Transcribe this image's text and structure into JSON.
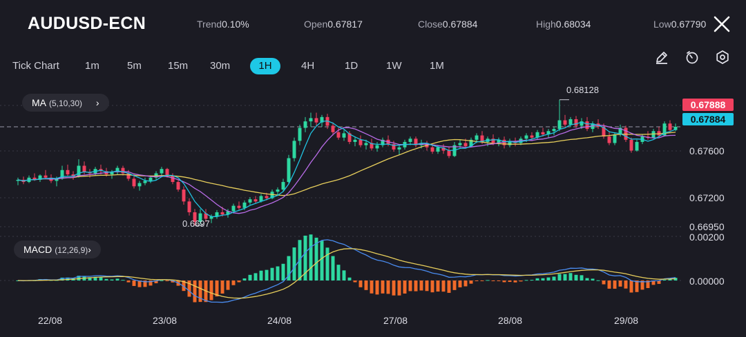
{
  "header": {
    "symbol": "AUDUSD-ECN",
    "trend_label": "Trend",
    "trend_value": "0.10%",
    "open_label": "Open",
    "open_value": "0.67817",
    "close_label": "Close",
    "close_value": "0.67884",
    "high_label": "High",
    "high_value": "0.68034",
    "low_label": "Low",
    "low_value": "0.67790",
    "close_icon": "close-icon"
  },
  "timeframes": [
    "Tick Chart",
    "1m",
    "5m",
    "15m",
    "30m",
    "1H",
    "4H",
    "1D",
    "1W",
    "1M"
  ],
  "active_timeframe": "1H",
  "tools": [
    "pencil-icon",
    "timer-icon",
    "settings-icon"
  ],
  "indicators": {
    "ma": {
      "name": "MA",
      "params": "(5,10,30)",
      "arrow": "›"
    },
    "macd": {
      "name": "MACD",
      "params": "(12,26,9)",
      "arrow": "›"
    }
  },
  "price_axis": [
    "0.67600",
    "0.67200",
    "0.66950"
  ],
  "macd_axis": [
    "0.00200",
    "0.00000"
  ],
  "annotations": {
    "high": "0.68128",
    "low": "0.6697"
  },
  "price_tags": {
    "ask": "0.67888",
    "bid": "0.67884"
  },
  "dates": [
    "22/08",
    "23/08",
    "24/08",
    "27/08",
    "28/08",
    "29/08"
  ],
  "colors": {
    "bg": "#1b1b23",
    "bull": "#2ed8a1",
    "bear": "#f0405f",
    "ma5": "#20c4e2",
    "ma10": "#b96ce8",
    "ma30": "#e8cf5c",
    "macd_pos": "#2ed8a1",
    "macd_neg": "#f06a2a",
    "dif": "#4a8cf0",
    "dea": "#e8cf5c",
    "accent": "#1ec8e6"
  },
  "chart_data": {
    "type": "candlestick",
    "price_range": [
      0.6695,
      0.6816
    ],
    "candles": [
      [
        0.6738,
        0.6741,
        0.6734,
        0.6739
      ],
      [
        0.6739,
        0.6742,
        0.6735,
        0.6737
      ],
      [
        0.6737,
        0.6743,
        0.6736,
        0.6741
      ],
      [
        0.6741,
        0.6745,
        0.6738,
        0.6739
      ],
      [
        0.6739,
        0.6744,
        0.6737,
        0.6743
      ],
      [
        0.6743,
        0.6748,
        0.674,
        0.6741
      ],
      [
        0.6741,
        0.6744,
        0.6736,
        0.6738
      ],
      [
        0.6738,
        0.6742,
        0.6733,
        0.674
      ],
      [
        0.674,
        0.6752,
        0.6739,
        0.6748
      ],
      [
        0.6748,
        0.6753,
        0.6742,
        0.6744
      ],
      [
        0.6744,
        0.6747,
        0.6739,
        0.6742
      ],
      [
        0.6742,
        0.6758,
        0.6741,
        0.6752
      ],
      [
        0.6752,
        0.6756,
        0.6744,
        0.6746
      ],
      [
        0.6746,
        0.6749,
        0.6741,
        0.6745
      ],
      [
        0.6745,
        0.6751,
        0.6743,
        0.6749
      ],
      [
        0.6749,
        0.6753,
        0.6744,
        0.6747
      ],
      [
        0.6747,
        0.675,
        0.6742,
        0.6744
      ],
      [
        0.6744,
        0.6748,
        0.674,
        0.6746
      ],
      [
        0.6746,
        0.6752,
        0.6744,
        0.675
      ],
      [
        0.675,
        0.6752,
        0.6743,
        0.6745
      ],
      [
        0.6745,
        0.6748,
        0.6738,
        0.674
      ],
      [
        0.674,
        0.6744,
        0.6731,
        0.6733
      ],
      [
        0.6733,
        0.6738,
        0.6729,
        0.6736
      ],
      [
        0.6736,
        0.6741,
        0.6734,
        0.6738
      ],
      [
        0.6738,
        0.6743,
        0.6736,
        0.6741
      ],
      [
        0.6741,
        0.6747,
        0.6739,
        0.6745
      ],
      [
        0.6745,
        0.6751,
        0.6743,
        0.6749
      ],
      [
        0.6749,
        0.675,
        0.6741,
        0.6743
      ],
      [
        0.6743,
        0.6745,
        0.6735,
        0.6737
      ],
      [
        0.6737,
        0.6739,
        0.6728,
        0.673
      ],
      [
        0.673,
        0.6733,
        0.6716,
        0.6719
      ],
      [
        0.6719,
        0.6722,
        0.6706,
        0.6709
      ],
      [
        0.6709,
        0.6712,
        0.6697,
        0.67
      ],
      [
        0.67,
        0.6712,
        0.6698,
        0.6708
      ],
      [
        0.6708,
        0.6712,
        0.67,
        0.6703
      ],
      [
        0.6703,
        0.6707,
        0.6699,
        0.6705
      ],
      [
        0.6705,
        0.6711,
        0.6703,
        0.6709
      ],
      [
        0.6709,
        0.6714,
        0.6705,
        0.6707
      ],
      [
        0.6707,
        0.6712,
        0.6704,
        0.671
      ],
      [
        0.671,
        0.6717,
        0.6708,
        0.6715
      ],
      [
        0.6715,
        0.6719,
        0.6711,
        0.6713
      ],
      [
        0.6713,
        0.672,
        0.6711,
        0.6718
      ],
      [
        0.6718,
        0.6723,
        0.6716,
        0.6721
      ],
      [
        0.6721,
        0.6724,
        0.6717,
        0.6719
      ],
      [
        0.6719,
        0.6726,
        0.6718,
        0.6724
      ],
      [
        0.6724,
        0.6727,
        0.672,
        0.6722
      ],
      [
        0.6722,
        0.673,
        0.6721,
        0.6728
      ],
      [
        0.6728,
        0.6732,
        0.6725,
        0.673
      ],
      [
        0.673,
        0.674,
        0.6728,
        0.6737
      ],
      [
        0.6737,
        0.6762,
        0.6735,
        0.6759
      ],
      [
        0.6759,
        0.6778,
        0.6756,
        0.6775
      ],
      [
        0.6775,
        0.679,
        0.6771,
        0.6787
      ],
      [
        0.6787,
        0.6797,
        0.6783,
        0.6793
      ],
      [
        0.6793,
        0.6801,
        0.6788,
        0.6796
      ],
      [
        0.6796,
        0.6801,
        0.6789,
        0.6792
      ],
      [
        0.6792,
        0.6799,
        0.6788,
        0.6797
      ],
      [
        0.6797,
        0.68,
        0.6786,
        0.6789
      ],
      [
        0.6789,
        0.6792,
        0.678,
        0.6783
      ],
      [
        0.6783,
        0.6787,
        0.6776,
        0.6778
      ],
      [
        0.6778,
        0.6785,
        0.6775,
        0.6782
      ],
      [
        0.6782,
        0.6784,
        0.6772,
        0.6774
      ],
      [
        0.6774,
        0.6779,
        0.677,
        0.6776
      ],
      [
        0.6776,
        0.678,
        0.6769,
        0.6771
      ],
      [
        0.6771,
        0.6776,
        0.6767,
        0.6773
      ],
      [
        0.6773,
        0.6777,
        0.6766,
        0.6768
      ],
      [
        0.6768,
        0.6774,
        0.6765,
        0.6771
      ],
      [
        0.6771,
        0.6778,
        0.6769,
        0.6776
      ],
      [
        0.6776,
        0.678,
        0.677,
        0.6772
      ],
      [
        0.6772,
        0.6775,
        0.6765,
        0.6767
      ],
      [
        0.6767,
        0.6771,
        0.6762,
        0.6769
      ],
      [
        0.6769,
        0.6776,
        0.6767,
        0.6774
      ],
      [
        0.6774,
        0.6779,
        0.6771,
        0.6777
      ],
      [
        0.6777,
        0.6779,
        0.6769,
        0.6771
      ],
      [
        0.6771,
        0.6776,
        0.6768,
        0.6773
      ],
      [
        0.6773,
        0.6775,
        0.6766,
        0.6769
      ],
      [
        0.6769,
        0.6772,
        0.6763,
        0.6765
      ],
      [
        0.6765,
        0.6771,
        0.6763,
        0.6769
      ],
      [
        0.6769,
        0.6772,
        0.6763,
        0.6766
      ],
      [
        0.6766,
        0.6769,
        0.6759,
        0.6761
      ],
      [
        0.6761,
        0.6774,
        0.676,
        0.6771
      ],
      [
        0.6771,
        0.6776,
        0.6768,
        0.6773
      ],
      [
        0.6773,
        0.6777,
        0.6768,
        0.677
      ],
      [
        0.677,
        0.6778,
        0.6769,
        0.6776
      ],
      [
        0.6776,
        0.6782,
        0.6773,
        0.678
      ],
      [
        0.678,
        0.6784,
        0.6772,
        0.6774
      ],
      [
        0.6774,
        0.6779,
        0.677,
        0.6777
      ],
      [
        0.6777,
        0.6781,
        0.6771,
        0.6773
      ],
      [
        0.6773,
        0.6778,
        0.677,
        0.6776
      ],
      [
        0.6776,
        0.6779,
        0.6768,
        0.6771
      ],
      [
        0.6771,
        0.6777,
        0.6769,
        0.6775
      ],
      [
        0.6775,
        0.6778,
        0.677,
        0.6773
      ],
      [
        0.6773,
        0.6779,
        0.6771,
        0.6777
      ],
      [
        0.6777,
        0.6782,
        0.6774,
        0.678
      ],
      [
        0.678,
        0.6783,
        0.6775,
        0.6778
      ],
      [
        0.6778,
        0.6785,
        0.6776,
        0.6783
      ],
      [
        0.6783,
        0.6787,
        0.6779,
        0.6781
      ],
      [
        0.6781,
        0.6786,
        0.6778,
        0.6784
      ],
      [
        0.6784,
        0.6788,
        0.678,
        0.6786
      ],
      [
        0.6786,
        0.6813,
        0.6784,
        0.6794
      ],
      [
        0.6794,
        0.6799,
        0.6787,
        0.679
      ],
      [
        0.679,
        0.6797,
        0.6788,
        0.6795
      ],
      [
        0.6795,
        0.6798,
        0.6787,
        0.6789
      ],
      [
        0.6789,
        0.6796,
        0.6786,
        0.6793
      ],
      [
        0.6793,
        0.6797,
        0.6784,
        0.6786
      ],
      [
        0.6786,
        0.6793,
        0.6783,
        0.6791
      ],
      [
        0.6791,
        0.6795,
        0.6786,
        0.6788
      ],
      [
        0.6788,
        0.6791,
        0.6777,
        0.6779
      ],
      [
        0.6779,
        0.6784,
        0.6771,
        0.6773
      ],
      [
        0.6773,
        0.6783,
        0.6771,
        0.6781
      ],
      [
        0.6781,
        0.679,
        0.6779,
        0.6787
      ],
      [
        0.6787,
        0.6789,
        0.6774,
        0.6776
      ],
      [
        0.6776,
        0.6778,
        0.6764,
        0.6766
      ],
      [
        0.6766,
        0.6776,
        0.6765,
        0.6774
      ],
      [
        0.6774,
        0.6781,
        0.6772,
        0.6779
      ],
      [
        0.6779,
        0.6784,
        0.6776,
        0.6778
      ],
      [
        0.6778,
        0.6786,
        0.6777,
        0.6784
      ],
      [
        0.6784,
        0.6788,
        0.6778,
        0.678
      ],
      [
        0.678,
        0.6793,
        0.6779,
        0.6791
      ],
      [
        0.6791,
        0.6794,
        0.6783,
        0.6785
      ],
      [
        0.6785,
        0.6791,
        0.6784,
        0.6788
      ]
    ],
    "macd_range": [
      -0.0011,
      0.002
    ]
  }
}
